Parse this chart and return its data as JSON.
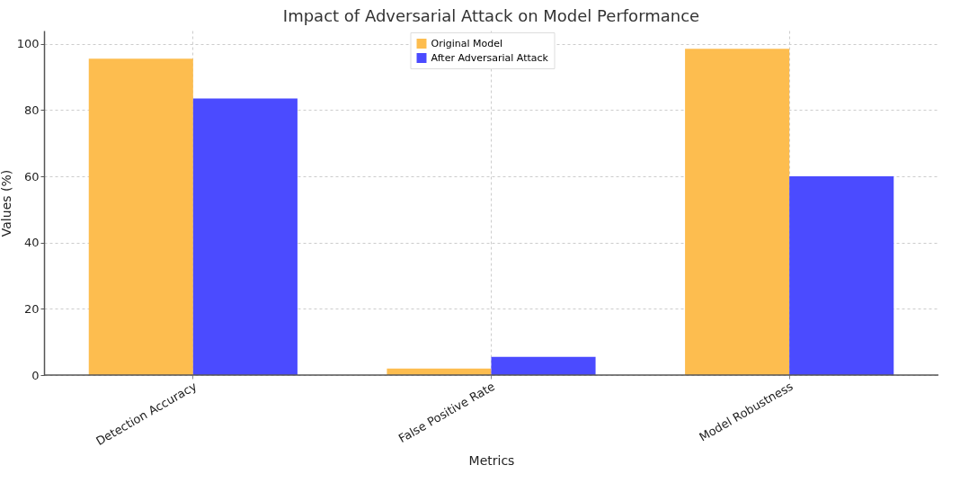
{
  "chart_data": {
    "type": "bar",
    "title": "Impact of Adversarial Attack on Model Performance",
    "xlabel": "Metrics",
    "ylabel": "Values (%)",
    "categories": [
      "Detection Accuracy",
      "False Positive Rate",
      "Model Robustness"
    ],
    "series": [
      {
        "name": "Original Model",
        "color": "#fdbd4f",
        "values": [
          95.5,
          2,
          98.5
        ]
      },
      {
        "name": "After Adversarial Attack",
        "color": "#4b4bff",
        "values": [
          83.5,
          5.5,
          60
        ]
      }
    ],
    "ylim": [
      0,
      104
    ],
    "yticks": [
      0,
      20,
      40,
      60,
      80,
      100
    ],
    "grid": true,
    "legend": "top"
  }
}
